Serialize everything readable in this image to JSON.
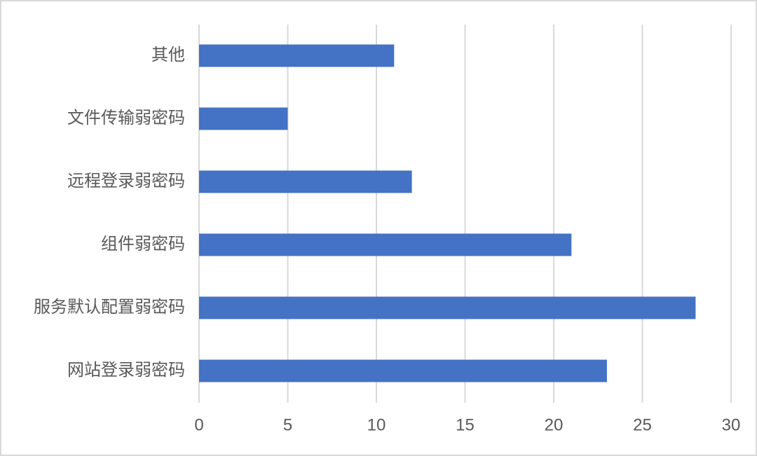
{
  "chart_data": {
    "type": "barh",
    "categories": [
      "其他",
      "文件传输弱密码",
      "远程登录弱密码",
      "组件弱密码",
      "服务默认配置弱密码",
      "网站登录弱密码"
    ],
    "values": [
      11,
      5,
      12,
      21,
      28,
      23
    ],
    "color": "#4472c4",
    "xlim": [
      0,
      30
    ],
    "xticks": [
      0,
      5,
      10,
      15,
      20,
      25,
      30
    ],
    "grid": true
  }
}
